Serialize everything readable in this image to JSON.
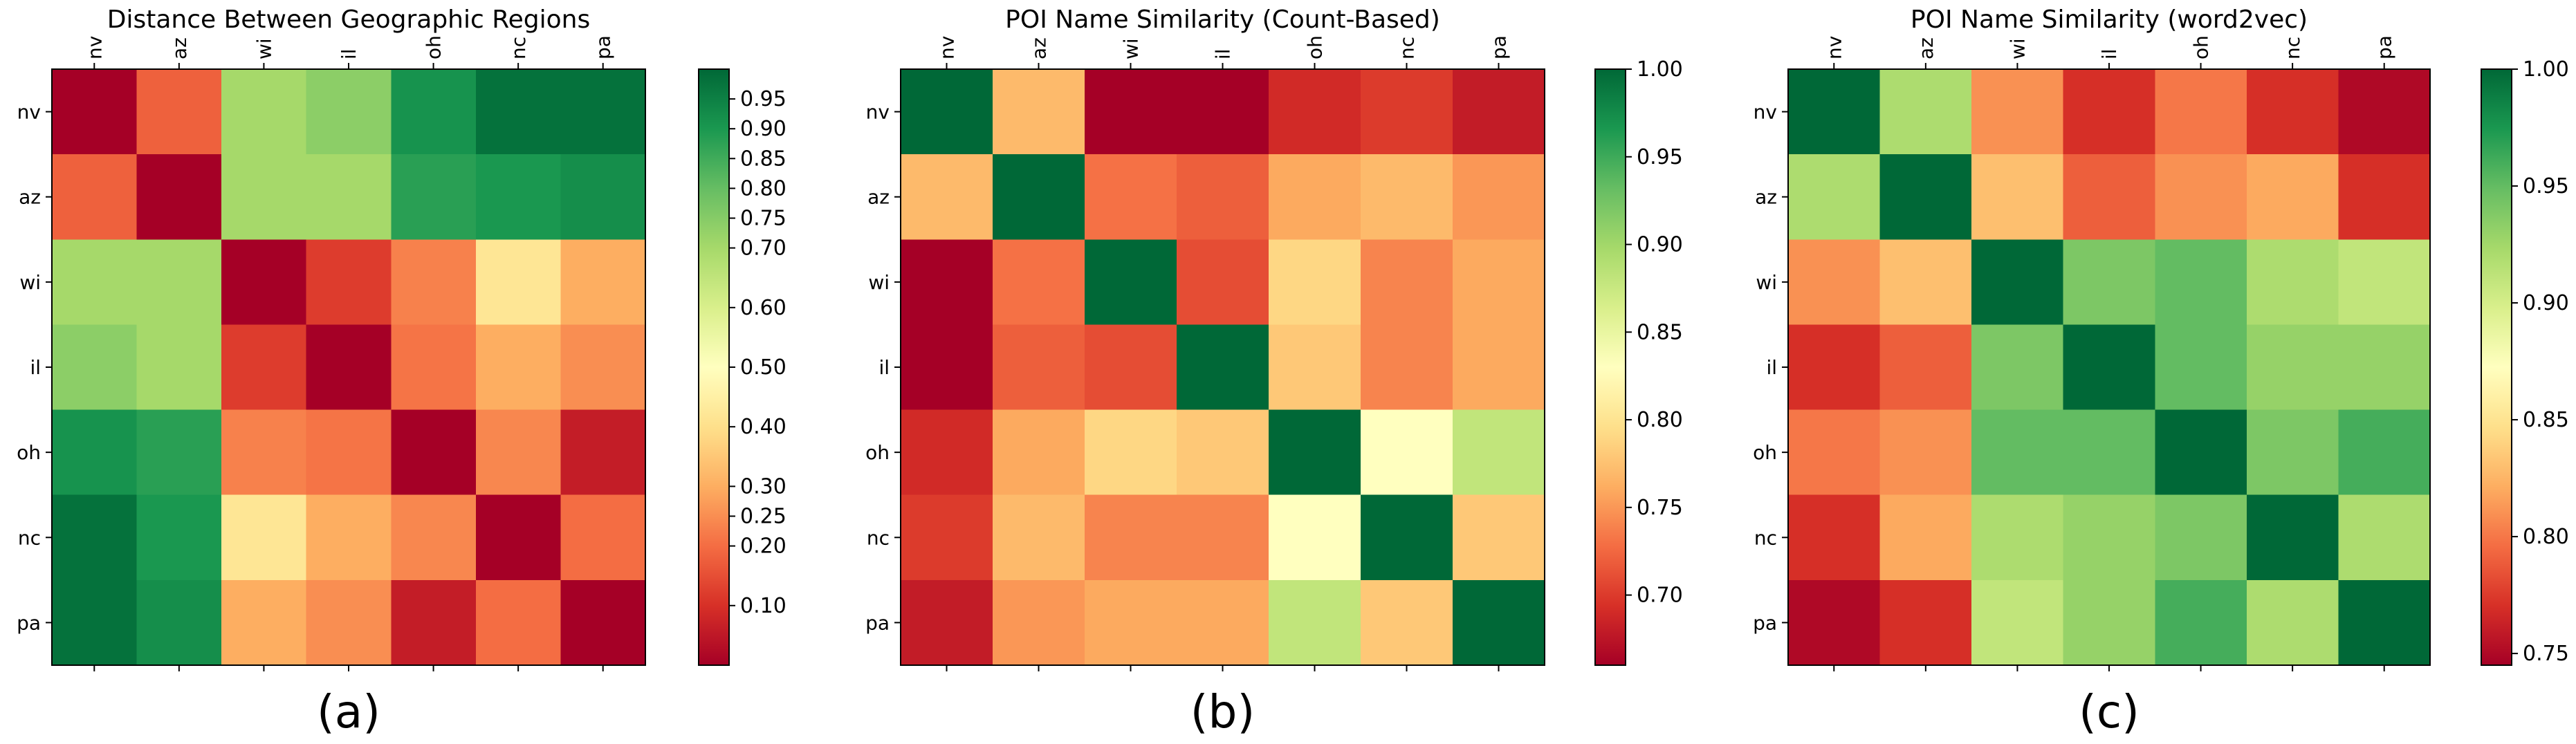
{
  "chart_data": [
    {
      "type": "heatmap",
      "title": "Distance Between Geographic Regions",
      "caption": "(a)",
      "x_categories": [
        "nv",
        "az",
        "wi",
        "il",
        "oh",
        "nc",
        "pa"
      ],
      "y_categories": [
        "nv",
        "az",
        "wi",
        "il",
        "oh",
        "nc",
        "pa"
      ],
      "colormap": "RdYlGn",
      "vmin": 0.0,
      "vmax": 1.0,
      "colorbar_ticks": [
        0.1,
        0.2,
        0.25,
        0.3,
        0.4,
        0.5,
        0.6,
        0.7,
        0.75,
        0.8,
        0.85,
        0.9,
        0.95
      ],
      "colorbar_tick_labels": [
        "0.10",
        "0.20",
        "0.25",
        "0.30",
        "0.40",
        "0.50",
        "0.60",
        "0.70",
        "0.75",
        "0.80",
        "0.85",
        "0.90",
        "0.95"
      ],
      "values": [
        [
          0.0,
          0.18,
          0.7,
          0.74,
          0.91,
          0.98,
          0.98
        ],
        [
          0.18,
          0.0,
          0.7,
          0.7,
          0.88,
          0.9,
          0.92
        ],
        [
          0.7,
          0.7,
          0.0,
          0.12,
          0.23,
          0.42,
          0.3
        ],
        [
          0.74,
          0.7,
          0.12,
          0.0,
          0.21,
          0.3,
          0.25
        ],
        [
          0.91,
          0.88,
          0.23,
          0.21,
          0.0,
          0.24,
          0.06
        ],
        [
          0.98,
          0.9,
          0.42,
          0.3,
          0.24,
          0.0,
          0.2
        ],
        [
          0.98,
          0.92,
          0.3,
          0.25,
          0.06,
          0.2,
          0.0
        ]
      ]
    },
    {
      "type": "heatmap",
      "title": "POI Name Similarity (Count-Based)",
      "caption": "(b)",
      "x_categories": [
        "nv",
        "az",
        "wi",
        "il",
        "oh",
        "nc",
        "pa"
      ],
      "y_categories": [
        "nv",
        "az",
        "wi",
        "il",
        "oh",
        "nc",
        "pa"
      ],
      "colormap": "RdYlGn",
      "vmin": 0.66,
      "vmax": 1.0,
      "colorbar_ticks": [
        0.7,
        0.75,
        0.8,
        0.85,
        0.9,
        0.95,
        1.0
      ],
      "colorbar_tick_labels": [
        "0.70",
        "0.75",
        "0.80",
        "0.85",
        "0.90",
        "0.95",
        "1.00"
      ],
      "values": [
        [
          1.0,
          0.77,
          0.66,
          0.66,
          0.69,
          0.7,
          0.68
        ],
        [
          0.77,
          1.0,
          0.73,
          0.72,
          0.76,
          0.77,
          0.75
        ],
        [
          0.66,
          0.73,
          1.0,
          0.71,
          0.79,
          0.74,
          0.76
        ],
        [
          0.66,
          0.72,
          0.71,
          1.0,
          0.78,
          0.74,
          0.76
        ],
        [
          0.69,
          0.76,
          0.79,
          0.78,
          1.0,
          0.83,
          0.88
        ],
        [
          0.7,
          0.77,
          0.74,
          0.74,
          0.83,
          1.0,
          0.78
        ],
        [
          0.68,
          0.75,
          0.76,
          0.76,
          0.88,
          0.78,
          1.0
        ]
      ]
    },
    {
      "type": "heatmap",
      "title": "POI Name Similarity (word2vec)",
      "caption": "(c)",
      "x_categories": [
        "nv",
        "az",
        "wi",
        "il",
        "oh",
        "nc",
        "pa"
      ],
      "y_categories": [
        "nv",
        "az",
        "wi",
        "il",
        "oh",
        "nc",
        "pa"
      ],
      "colormap": "RdYlGn",
      "vmin": 0.745,
      "vmax": 1.0,
      "colorbar_ticks": [
        0.75,
        0.8,
        0.85,
        0.9,
        0.95,
        1.0
      ],
      "colorbar_tick_labels": [
        "0.75",
        "0.80",
        "0.85",
        "0.90",
        "0.95",
        "1.00"
      ],
      "values": [
        [
          1.0,
          0.92,
          0.81,
          0.77,
          0.8,
          0.77,
          0.75
        ],
        [
          0.92,
          1.0,
          0.83,
          0.79,
          0.81,
          0.82,
          0.77
        ],
        [
          0.81,
          0.83,
          1.0,
          0.94,
          0.95,
          0.92,
          0.91
        ],
        [
          0.77,
          0.79,
          0.94,
          1.0,
          0.95,
          0.93,
          0.93
        ],
        [
          0.8,
          0.81,
          0.95,
          0.95,
          1.0,
          0.94,
          0.96
        ],
        [
          0.77,
          0.82,
          0.92,
          0.93,
          0.94,
          1.0,
          0.92
        ],
        [
          0.75,
          0.77,
          0.91,
          0.93,
          0.96,
          0.92,
          1.0
        ]
      ]
    }
  ]
}
